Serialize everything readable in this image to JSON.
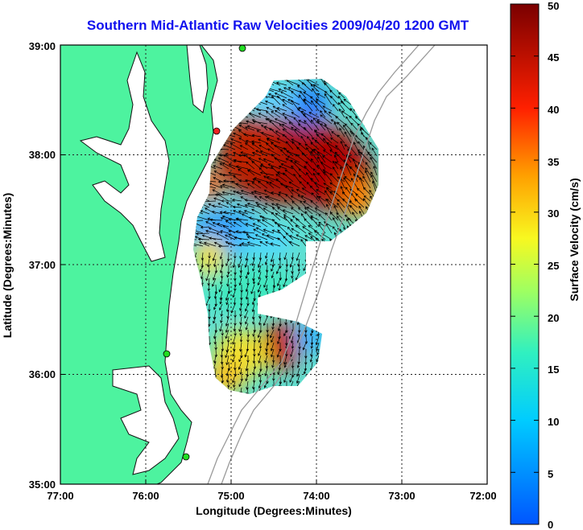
{
  "title": "Southern Mid-Atlantic Raw Velocities 2009/04/20 1200 GMT",
  "x_axis": {
    "label": "Longitude (Degrees:Minutes)",
    "ticks": [
      "77:00",
      "76:00",
      "75:00",
      "74:00",
      "73:00",
      "72:00"
    ]
  },
  "y_axis": {
    "label": "Latitude (Degrees:Minutes)",
    "ticks": [
      "39:00",
      "38:00",
      "37:00",
      "36:00",
      "35:00"
    ]
  },
  "colorbar": {
    "label": "Surface Velocity (cm/s)",
    "ticks": [
      "50",
      "45",
      "40",
      "35",
      "30",
      "25",
      "20",
      "15",
      "10",
      "5",
      "0"
    ],
    "range": [
      0,
      50
    ]
  },
  "colors": {
    "land": "#4df39f",
    "title": "#1010ee",
    "station": "#22dd22",
    "station_alert": "#ee2222",
    "bathymetry": "#9a9a9a"
  },
  "chart_data": {
    "type": "heatmap",
    "title": "Southern Mid-Atlantic Raw Velocities 2009/04/20 1200 GMT",
    "xlabel": "Longitude (Degrees:Minutes)",
    "ylabel": "Latitude (Degrees:Minutes)",
    "xlim": [
      -77,
      -72
    ],
    "ylim": [
      35,
      39
    ],
    "clim": [
      0,
      50
    ],
    "velocity_regions": [
      {
        "lon": -74.7,
        "lat": 37.8,
        "speed": 48
      },
      {
        "lon": -74.1,
        "lat": 37.7,
        "speed": 45
      },
      {
        "lon": -74.2,
        "lat": 38.5,
        "speed": 8
      },
      {
        "lon": -74.9,
        "lat": 37.25,
        "speed": 12
      },
      {
        "lon": -74.8,
        "lat": 36.8,
        "speed": 18
      },
      {
        "lon": -74.5,
        "lat": 36.3,
        "speed": 46
      },
      {
        "lon": -75.0,
        "lat": 36.2,
        "speed": 25
      }
    ]
  }
}
